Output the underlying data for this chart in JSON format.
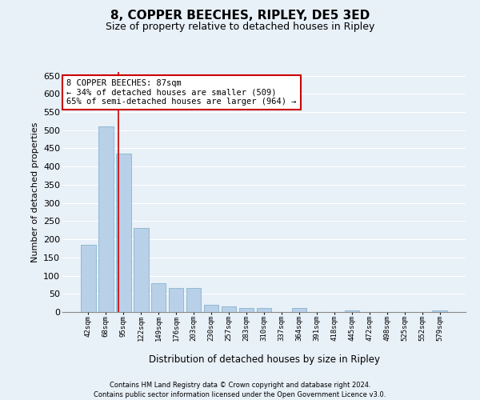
{
  "title": "8, COPPER BEECHES, RIPLEY, DE5 3ED",
  "subtitle": "Size of property relative to detached houses in Ripley",
  "xlabel": "Distribution of detached houses by size in Ripley",
  "ylabel": "Number of detached properties",
  "annotation_title": "8 COPPER BEECHES: 87sqm",
  "annotation_line1": "← 34% of detached houses are smaller (509)",
  "annotation_line2": "65% of semi-detached houses are larger (964) →",
  "footer_line1": "Contains HM Land Registry data © Crown copyright and database right 2024.",
  "footer_line2": "Contains public sector information licensed under the Open Government Licence v3.0.",
  "categories": [
    "42sqm",
    "68sqm",
    "95sqm",
    "122sqm",
    "149sqm",
    "176sqm",
    "203sqm",
    "230sqm",
    "257sqm",
    "283sqm",
    "310sqm",
    "337sqm",
    "364sqm",
    "391sqm",
    "418sqm",
    "445sqm",
    "472sqm",
    "498sqm",
    "525sqm",
    "552sqm",
    "579sqm"
  ],
  "values": [
    185,
    510,
    435,
    230,
    80,
    65,
    65,
    20,
    15,
    10,
    10,
    0,
    10,
    0,
    0,
    5,
    0,
    0,
    0,
    0,
    5
  ],
  "bar_color": "#b8d0e8",
  "bar_edge_color": "#7aaac8",
  "red_line_color": "#cc0000",
  "background_color": "#e8f0f8",
  "annotation_box_color": "#ffffff",
  "annotation_border_color": "#cc0000",
  "grid_color": "#ffffff",
  "ylim": [
    0,
    660
  ],
  "yticks": [
    0,
    50,
    100,
    150,
    200,
    250,
    300,
    350,
    400,
    450,
    500,
    550,
    600,
    650
  ],
  "red_line_x": 1.7
}
